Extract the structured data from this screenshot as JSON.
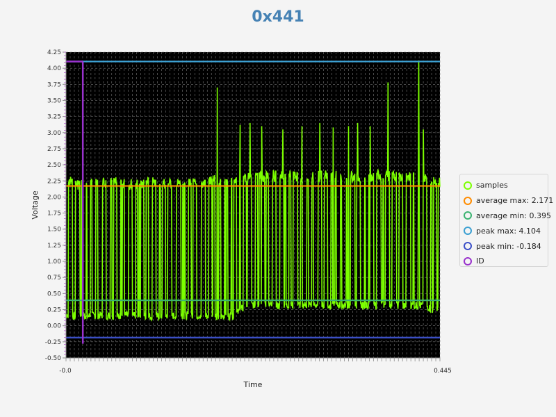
{
  "chart_data": {
    "type": "line",
    "title": "0x441",
    "xlabel": "Time",
    "ylabel": "Voltage",
    "xlim": [
      -0.0,
      0.445
    ],
    "ylim": [
      -0.5,
      4.25
    ],
    "y_ticks": [
      "-0.50",
      "-0.25",
      "0.00",
      "0.25",
      "0.50",
      "0.75",
      "1.00",
      "1.25",
      "1.50",
      "1.75",
      "2.00",
      "2.25",
      "2.50",
      "2.75",
      "3.00",
      "3.25",
      "3.50",
      "3.75",
      "4.00",
      "4.25"
    ],
    "x_tick_first": "-0.0",
    "x_tick_last": "0.445",
    "background": "#000000",
    "grid": true,
    "legend_position": "right",
    "samples_envelope": {
      "x": [
        0.0,
        0.005,
        0.012,
        0.018,
        0.025,
        0.035,
        0.045,
        0.06,
        0.075,
        0.09,
        0.105,
        0.12,
        0.14,
        0.16,
        0.18,
        0.2,
        0.215,
        0.23,
        0.25,
        0.27,
        0.29,
        0.31,
        0.33,
        0.35,
        0.37,
        0.39,
        0.4,
        0.412,
        0.42,
        0.428,
        0.436,
        0.445
      ],
      "high": [
        2.3,
        2.33,
        2.28,
        2.31,
        2.29,
        2.32,
        2.3,
        2.31,
        2.29,
        2.3,
        2.31,
        2.3,
        2.28,
        2.3,
        2.35,
        2.29,
        2.41,
        2.4,
        2.42,
        2.41,
        2.4,
        2.42,
        2.41,
        2.4,
        2.42,
        2.41,
        2.4,
        2.41,
        2.42,
        2.41,
        2.31,
        2.3
      ],
      "low": [
        0.12,
        0.1,
        0.08,
        0.11,
        0.09,
        0.1,
        0.1,
        0.09,
        0.11,
        0.1,
        0.08,
        0.1,
        0.09,
        0.1,
        0.08,
        0.1,
        0.26,
        0.27,
        0.25,
        0.26,
        0.27,
        0.25,
        0.26,
        0.25,
        0.26,
        0.27,
        0.25,
        0.26,
        0.25,
        0.26,
        0.18,
        0.17
      ]
    },
    "samples_spikes": [
      {
        "x": 0.18,
        "y": 3.7
      },
      {
        "x": 0.207,
        "y": 3.12
      },
      {
        "x": 0.219,
        "y": 3.15
      },
      {
        "x": 0.233,
        "y": 3.1
      },
      {
        "x": 0.258,
        "y": 3.05
      },
      {
        "x": 0.281,
        "y": 3.1
      },
      {
        "x": 0.302,
        "y": 3.15
      },
      {
        "x": 0.318,
        "y": 3.08
      },
      {
        "x": 0.336,
        "y": 3.1
      },
      {
        "x": 0.347,
        "y": 3.15
      },
      {
        "x": 0.362,
        "y": 3.1
      },
      {
        "x": 0.383,
        "y": 3.78
      },
      {
        "x": 0.42,
        "y": 4.12
      },
      {
        "x": 0.425,
        "y": 3.05
      }
    ],
    "series": [
      {
        "name": "samples",
        "color": "#7cff00"
      },
      {
        "name": "average max: 2.171",
        "value": 2.171,
        "color": "#ff8c00"
      },
      {
        "name": "average min: 0.395",
        "value": 0.395,
        "color": "#3cb371"
      },
      {
        "name": "peak max: 4.104",
        "value": 4.104,
        "color": "#3ca0d2"
      },
      {
        "name": "peak min: -0.184",
        "value": -0.184,
        "color": "#3c50c8"
      },
      {
        "name": "ID",
        "x": 0.02,
        "y_top": 4.104,
        "y_bottom": -0.28,
        "color": "#9932cc"
      }
    ]
  }
}
